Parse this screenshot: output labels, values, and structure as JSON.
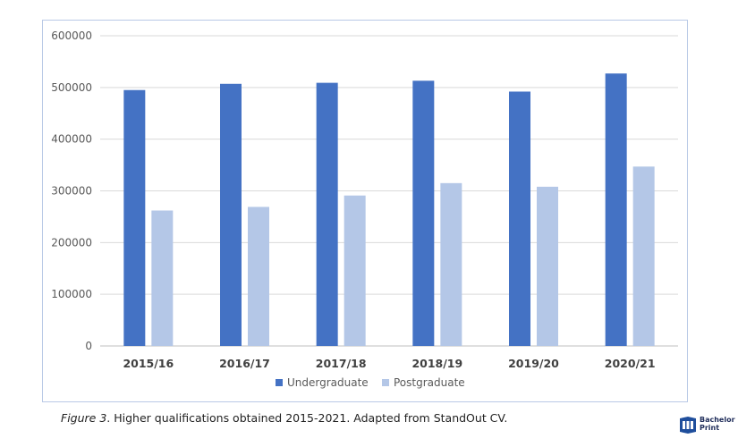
{
  "chart_data": {
    "type": "bar",
    "categories": [
      "2015/16",
      "2016/17",
      "2017/18",
      "2018/19",
      "2019/20",
      "2020/21"
    ],
    "series": [
      {
        "name": "Undergraduate",
        "color": "#4472c4",
        "values": [
          495000,
          507000,
          509000,
          513000,
          492000,
          527000
        ]
      },
      {
        "name": "Postgraduate",
        "color": "#b4c7e7",
        "values": [
          262000,
          269000,
          291000,
          315000,
          308000,
          347000
        ]
      }
    ],
    "ylim": [
      0,
      600000
    ],
    "yticks": [
      "0",
      "100000",
      "200000",
      "300000",
      "400000",
      "500000",
      "600000"
    ],
    "grid": true,
    "legend": "bottom"
  },
  "caption": {
    "figure_label": "Figure 3",
    "text": ". Higher qualifications obtained  2015-2021. Adapted from StandOut CV."
  },
  "logo": {
    "line1": "Bachelor",
    "line2": "Print"
  }
}
